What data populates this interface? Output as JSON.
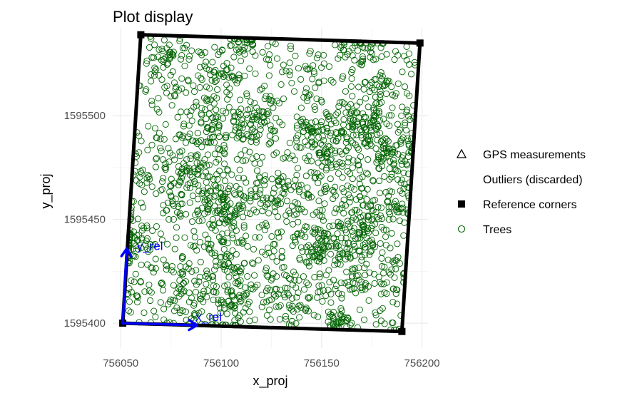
{
  "chart_data": {
    "type": "scatter",
    "title": "Plot display",
    "xlabel": "x_proj",
    "ylabel": "y_proj",
    "xlim": [
      756046,
      756203
    ],
    "ylim": [
      1595388,
      1595542
    ],
    "x_ticks": [
      756050,
      756100,
      756150,
      756200
    ],
    "x_tick_labels": [
      "756050",
      "756100",
      "756150",
      "756200"
    ],
    "y_ticks": [
      1595400,
      1595450,
      1595500
    ],
    "y_tick_labels": [
      "1595400",
      "1595450",
      "1595500"
    ],
    "grid": true,
    "legend_position": "right",
    "legend": [
      {
        "label": "GPS measurements",
        "symbol": "triangle-open"
      },
      {
        "label": "Outliers (discarded)",
        "symbol": "none"
      },
      {
        "label": "Reference corners",
        "symbol": "square-filled"
      },
      {
        "label": "Trees",
        "symbol": "circle-open"
      }
    ],
    "reference_corners": [
      {
        "x": 756051,
        "y": 1595400
      },
      {
        "x": 756060,
        "y": 1595539
      },
      {
        "x": 756199,
        "y": 1595535
      },
      {
        "x": 756190,
        "y": 1595396
      }
    ],
    "relative_axes": {
      "origin": {
        "x": 756051,
        "y": 1595400
      },
      "x_rel_end": {
        "x": 756088,
        "y": 1595399
      },
      "y_rel_end": {
        "x": 756053,
        "y": 1595436
      },
      "x_label": "x_rel",
      "y_label": "y_rel",
      "color": "#0000ff"
    },
    "trees": {
      "count_approx": 2200,
      "color": "#006400",
      "distribution": "dense, clumped, within the reference quadrilateral"
    }
  }
}
